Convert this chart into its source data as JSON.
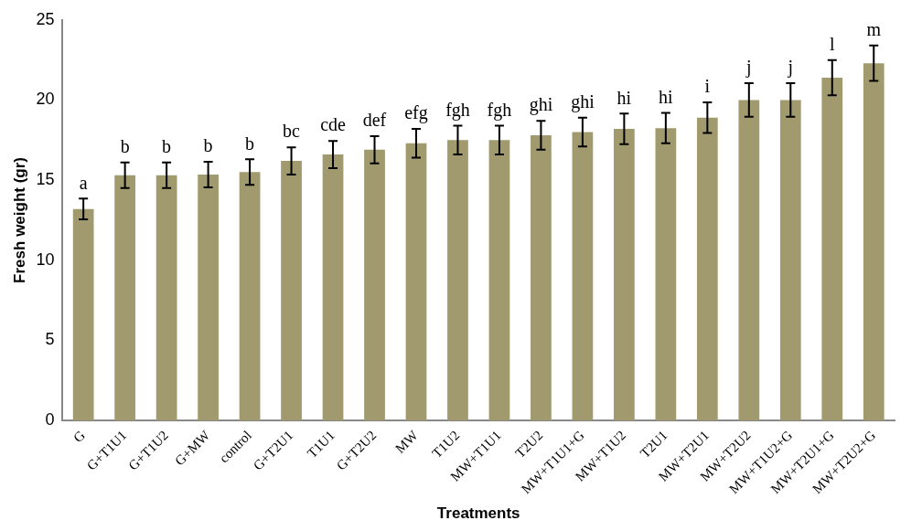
{
  "chart_data": {
    "type": "bar",
    "xlabel": "Treatments",
    "ylabel": "Fresh weight (gr)",
    "categories": [
      "G",
      "G+T1U1",
      "G+T1U2",
      "G+MW",
      "control",
      "G+T2U1",
      "T1U1",
      "G+T2U2",
      "MW",
      "T1U2",
      "MW+T1U1",
      "T2U2",
      "MW+T1U1+G",
      "MW+T1U2",
      "T2U1",
      "MW+T2U1",
      "MW+T2U2",
      "MW+T1U2+G",
      "MW+T2U1+G",
      "MW+T2U2+G"
    ],
    "values": [
      13.2,
      15.3,
      15.3,
      15.35,
      15.5,
      16.2,
      16.6,
      16.9,
      17.3,
      17.5,
      17.5,
      17.8,
      18.0,
      18.2,
      18.25,
      18.9,
      20.0,
      20.0,
      21.4,
      22.3
    ],
    "errors": [
      0.65,
      0.8,
      0.8,
      0.8,
      0.8,
      0.85,
      0.85,
      0.85,
      0.9,
      0.9,
      0.9,
      0.9,
      0.9,
      0.95,
      0.95,
      0.95,
      1.05,
      1.05,
      1.1,
      1.1
    ],
    "color": "#a09a6e",
    "ylim": [
      0,
      25
    ],
    "yticks": [
      0,
      5,
      10,
      15,
      20,
      25
    ],
    "grid": false,
    "legend": false,
    "annotations": [
      {
        "text": "a",
        "x": "G",
        "y": 13.85
      },
      {
        "text": "b",
        "x": "G+T1U1",
        "y": 16.1
      },
      {
        "text": "b",
        "x": "G+T1U2",
        "y": 16.1
      },
      {
        "text": "b",
        "x": "G+MW",
        "y": 16.15
      },
      {
        "text": "b",
        "x": "control",
        "y": 16.3
      },
      {
        "text": "bc",
        "x": "G+T2U1",
        "y": 17.05
      },
      {
        "text": "cde",
        "x": "T1U1",
        "y": 17.45
      },
      {
        "text": "def",
        "x": "G+T2U2",
        "y": 17.75
      },
      {
        "text": "efg",
        "x": "MW",
        "y": 18.2
      },
      {
        "text": "fgh",
        "x": "T1U2",
        "y": 18.4
      },
      {
        "text": "fgh",
        "x": "MW+T1U1",
        "y": 18.4
      },
      {
        "text": "ghi",
        "x": "T2U2",
        "y": 18.7
      },
      {
        "text": "ghi",
        "x": "MW+T1U1+G",
        "y": 18.9
      },
      {
        "text": "hi",
        "x": "MW+T1U2",
        "y": 19.15
      },
      {
        "text": "hi",
        "x": "T2U1",
        "y": 19.2
      },
      {
        "text": "i",
        "x": "MW+T2U1",
        "y": 19.85
      },
      {
        "text": "j",
        "x": "MW+T2U2",
        "y": 21.05
      },
      {
        "text": "j",
        "x": "MW+T1U2+G",
        "y": 21.05
      },
      {
        "text": "l",
        "x": "MW+T2U1+G",
        "y": 22.5
      },
      {
        "text": "m",
        "x": "MW+T2U2+G",
        "y": 23.4
      }
    ]
  }
}
